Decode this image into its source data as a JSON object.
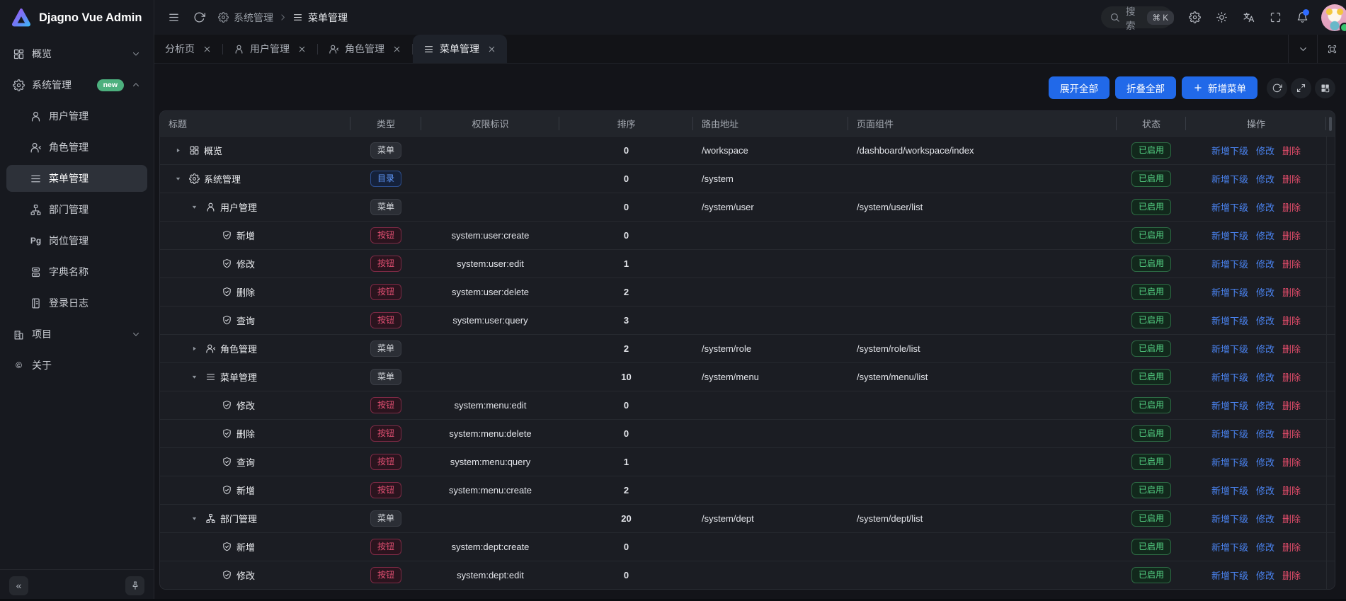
{
  "app": {
    "name": "Djagno Vue Admin"
  },
  "header": {
    "breadcrumb": [
      {
        "key": "system",
        "icon": "gear",
        "label": "系统管理"
      },
      {
        "key": "menu",
        "icon": "menu",
        "label": "菜单管理"
      }
    ],
    "search": {
      "label": "搜索",
      "shortcut": "⌘ K"
    },
    "actions": [
      {
        "key": "settings",
        "icon": "gear"
      },
      {
        "key": "theme",
        "icon": "sun"
      },
      {
        "key": "language",
        "icon": "translate"
      },
      {
        "key": "fullscreen",
        "icon": "fullscreen"
      },
      {
        "key": "notifications",
        "icon": "bell",
        "dot": true
      }
    ]
  },
  "sidebar": {
    "items": [
      {
        "key": "overview",
        "icon": "grid",
        "label": "概览",
        "chevron": "down"
      },
      {
        "key": "system",
        "icon": "gear",
        "label": "系统管理",
        "badge": "new",
        "chevron": "up"
      },
      {
        "key": "user-mgmt",
        "icon": "user",
        "label": "用户管理",
        "sub": true
      },
      {
        "key": "role-mgmt",
        "icon": "user-arrow",
        "label": "角色管理",
        "sub": true
      },
      {
        "key": "menu-mgmt",
        "icon": "menu",
        "label": "菜单管理",
        "sub": true,
        "active": true
      },
      {
        "key": "dept-mgmt",
        "icon": "org",
        "label": "部门管理",
        "sub": true
      },
      {
        "key": "post-mgmt",
        "icon": "pg",
        "label": "岗位管理",
        "sub": true
      },
      {
        "key": "dict-mgmt",
        "icon": "dict",
        "label": "字典名称",
        "sub": true
      },
      {
        "key": "login-log",
        "icon": "log",
        "label": "登录日志",
        "sub": true
      },
      {
        "key": "project",
        "icon": "building",
        "label": "项目",
        "chevron": "down"
      },
      {
        "key": "about",
        "icon": "copyright",
        "label": "关于"
      }
    ]
  },
  "tabs": [
    {
      "key": "analysis",
      "label": "分析页",
      "closable": true
    },
    {
      "key": "user-mgmt",
      "icon": "user",
      "label": "用户管理",
      "closable": true
    },
    {
      "key": "role-mgmt",
      "icon": "user-arrow",
      "label": "角色管理",
      "closable": true
    },
    {
      "key": "menu-mgmt",
      "icon": "menu",
      "label": "菜单管理",
      "closable": true,
      "active": true
    }
  ],
  "toolbar": {
    "buttons": [
      {
        "key": "expand-all",
        "label": "展开全部"
      },
      {
        "key": "collapse-all",
        "label": "折叠全部"
      },
      {
        "key": "add-menu",
        "label": "新增菜单",
        "icon": "plus"
      }
    ],
    "icons": [
      {
        "key": "refresh",
        "icon": "refresh"
      },
      {
        "key": "fullscreen-table",
        "icon": "expand"
      },
      {
        "key": "column-settings",
        "icon": "layout"
      }
    ]
  },
  "table": {
    "columns": [
      {
        "label": "标题",
        "align": "left"
      },
      {
        "label": "类型",
        "align": "center"
      },
      {
        "label": "权限标识",
        "align": "center"
      },
      {
        "label": "排序",
        "align": "center"
      },
      {
        "label": "路由地址",
        "align": "left"
      },
      {
        "label": "页面组件",
        "align": "left"
      },
      {
        "label": "状态",
        "align": "center"
      },
      {
        "label": "操作",
        "align": "center"
      }
    ],
    "ops": [
      {
        "key": "add-child",
        "label": "新增下级",
        "color": "blue"
      },
      {
        "key": "edit",
        "label": "修改",
        "color": "blue"
      },
      {
        "key": "delete",
        "label": "删除",
        "color": "red"
      }
    ],
    "rows": [
      {
        "level": 0,
        "arrow": "collapsed",
        "icon": "grid",
        "title": "概览",
        "type": "菜单",
        "perm": "",
        "sort": "0",
        "route": "/workspace",
        "component": "/dashboard/workspace/index",
        "status": "已启用"
      },
      {
        "level": 0,
        "arrow": "expanded",
        "icon": "gear",
        "title": "系统管理",
        "type": "目录",
        "perm": "",
        "sort": "0",
        "route": "/system",
        "component": "",
        "status": "已启用"
      },
      {
        "level": 1,
        "arrow": "expanded",
        "icon": "user",
        "title": "用户管理",
        "type": "菜单",
        "perm": "",
        "sort": "0",
        "route": "/system/user",
        "component": "/system/user/list",
        "status": "已启用"
      },
      {
        "level": 2,
        "arrow": "none",
        "icon": "shield",
        "title": "新增",
        "type": "按钮",
        "perm": "system:user:create",
        "sort": "0",
        "route": "",
        "component": "",
        "status": "已启用"
      },
      {
        "level": 2,
        "arrow": "none",
        "icon": "shield",
        "title": "修改",
        "type": "按钮",
        "perm": "system:user:edit",
        "sort": "1",
        "route": "",
        "component": "",
        "status": "已启用"
      },
      {
        "level": 2,
        "arrow": "none",
        "icon": "shield",
        "title": "删除",
        "type": "按钮",
        "perm": "system:user:delete",
        "sort": "2",
        "route": "",
        "component": "",
        "status": "已启用"
      },
      {
        "level": 2,
        "arrow": "none",
        "icon": "shield",
        "title": "查询",
        "type": "按钮",
        "perm": "system:user:query",
        "sort": "3",
        "route": "",
        "component": "",
        "status": "已启用"
      },
      {
        "level": 1,
        "arrow": "collapsed",
        "icon": "user-arrow",
        "title": "角色管理",
        "type": "菜单",
        "perm": "",
        "sort": "2",
        "route": "/system/role",
        "component": "/system/role/list",
        "status": "已启用"
      },
      {
        "level": 1,
        "arrow": "expanded",
        "icon": "menu",
        "title": "菜单管理",
        "type": "菜单",
        "perm": "",
        "sort": "10",
        "route": "/system/menu",
        "component": "/system/menu/list",
        "status": "已启用"
      },
      {
        "level": 2,
        "arrow": "none",
        "icon": "shield",
        "title": "修改",
        "type": "按钮",
        "perm": "system:menu:edit",
        "sort": "0",
        "route": "",
        "component": "",
        "status": "已启用"
      },
      {
        "level": 2,
        "arrow": "none",
        "icon": "shield",
        "title": "删除",
        "type": "按钮",
        "perm": "system:menu:delete",
        "sort": "0",
        "route": "",
        "component": "",
        "status": "已启用"
      },
      {
        "level": 2,
        "arrow": "none",
        "icon": "shield",
        "title": "查询",
        "type": "按钮",
        "perm": "system:menu:query",
        "sort": "1",
        "route": "",
        "component": "",
        "status": "已启用"
      },
      {
        "level": 2,
        "arrow": "none",
        "icon": "shield",
        "title": "新增",
        "type": "按钮",
        "perm": "system:menu:create",
        "sort": "2",
        "route": "",
        "component": "",
        "status": "已启用"
      },
      {
        "level": 1,
        "arrow": "expanded",
        "icon": "org",
        "title": "部门管理",
        "type": "菜单",
        "perm": "",
        "sort": "20",
        "route": "/system/dept",
        "component": "/system/dept/list",
        "status": "已启用"
      },
      {
        "level": 2,
        "arrow": "none",
        "icon": "shield",
        "title": "新增",
        "type": "按钮",
        "perm": "system:dept:create",
        "sort": "0",
        "route": "",
        "component": "",
        "status": "已启用"
      },
      {
        "level": 2,
        "arrow": "none",
        "icon": "shield",
        "title": "修改",
        "type": "按钮",
        "perm": "system:dept:edit",
        "sort": "0",
        "route": "",
        "component": "",
        "status": "已启用"
      }
    ]
  },
  "footer": {
    "collapse_label": "«"
  },
  "colors": {
    "primary": "#2169e9",
    "link_blue": "#4a83f0",
    "danger": "#e14c6a",
    "success": "#54d183",
    "badge_new": "#4db07e",
    "notification_dot": "#2f6bff"
  }
}
